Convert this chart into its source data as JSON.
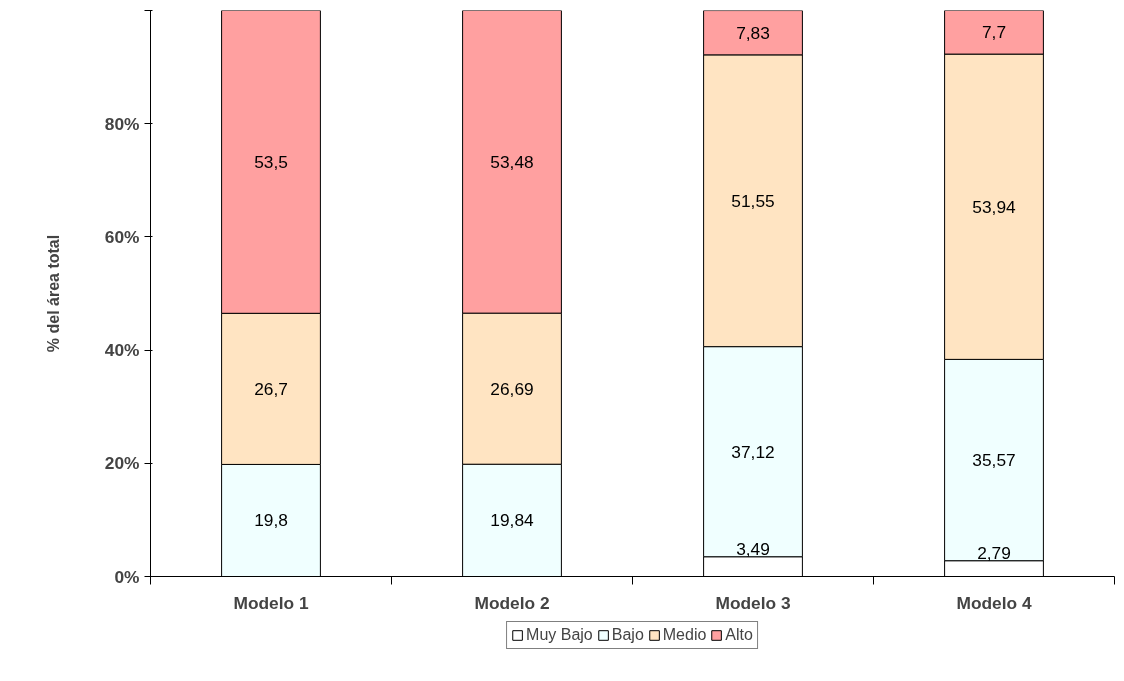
{
  "chart_data": {
    "type": "bar",
    "stacked": true,
    "ylabel": "% del área total",
    "categories": [
      "Modelo 1",
      "Modelo 2",
      "Modelo 3",
      "Modelo 4"
    ],
    "series": [
      {
        "name": "Muy Bajo",
        "color": "#ffffff",
        "values": [
          0,
          0,
          3.49,
          2.79
        ],
        "value_labels": [
          null,
          null,
          "3,49",
          "2,79"
        ]
      },
      {
        "name": "Bajo",
        "color": "#f0ffff",
        "values": [
          19.8,
          19.84,
          37.12,
          35.57
        ],
        "value_labels": [
          "19,8",
          "19,84",
          "37,12",
          "35,57"
        ]
      },
      {
        "name": "Medio",
        "color": "#ffe4c2",
        "values": [
          26.7,
          26.69,
          51.55,
          53.94
        ],
        "value_labels": [
          "26,7",
          "26,69",
          "51,55",
          "53,94"
        ]
      },
      {
        "name": "Alto",
        "color": "#ffa0a0",
        "values": [
          53.5,
          53.48,
          7.83,
          7.7
        ],
        "value_labels": [
          "53,5",
          "53,48",
          "7,83",
          "7,7"
        ]
      }
    ],
    "ylim": [
      0,
      100
    ],
    "yticks": [
      {
        "value": 0,
        "label": "0%"
      },
      {
        "value": 20,
        "label": "20%"
      },
      {
        "value": 40,
        "label": "40%"
      },
      {
        "value": 60,
        "label": "60%"
      },
      {
        "value": 80,
        "label": "80%"
      },
      {
        "value": 100,
        "label": null
      }
    ],
    "grid": false,
    "legend": "bottom"
  }
}
